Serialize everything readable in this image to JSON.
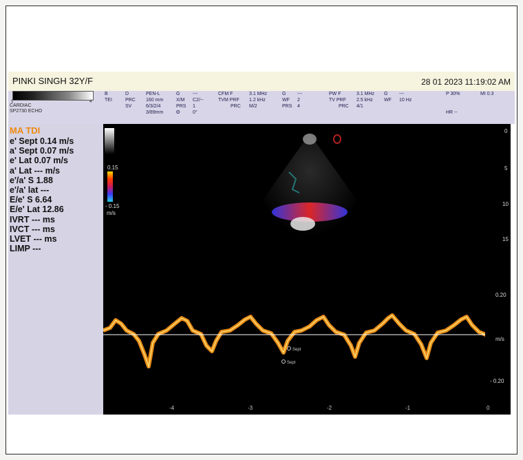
{
  "header": {
    "patient": "PINKI SINGH  32Y/F",
    "datetime": "28  01  2023 11:19:02 AM"
  },
  "param": {
    "graybar_left": "1",
    "graybar_right": "4",
    "cardiac": "CARDIAC",
    "probe": "SP2730   ECHO",
    "col1": [
      "B",
      "TEI"
    ],
    "col2": [
      "",
      "D",
      "PRC",
      "SV"
    ],
    "col3": [
      "PEN-L",
      "160 mm",
      "6/3/2/4",
      "3/89mm"
    ],
    "col4": [
      "G",
      "X/M",
      "PRS",
      "Θ"
    ],
    "col5": [
      "---",
      "C2/--",
      "1",
      "0°"
    ],
    "col6": [
      "CFM F",
      "TVM PRF",
      "PRC"
    ],
    "col7": [
      "3.1 MHz",
      "1.2 kHz",
      "M/2"
    ],
    "col8": [
      "G",
      "WF",
      "PRS"
    ],
    "col9": [
      "---",
      "2",
      "4"
    ],
    "col10": [
      "PW F",
      "TV  PRF",
      "PRC"
    ],
    "col11": [
      "3.1 MHz",
      "2.5 kHz",
      "4/1"
    ],
    "col12": [
      "G",
      "WF"
    ],
    "col13": [
      "---",
      "10 Hz"
    ],
    "col14": [
      "P  30%",
      "",
      "",
      "HR --"
    ],
    "col15": [
      "MI  0.3"
    ]
  },
  "measurements": {
    "title": "MA TDI",
    "rows": [
      "e' Sept 0.14 m/s",
      "a' Sept 0.07 m/s",
      "e' Lat 0.07 m/s",
      "a' Lat --- m/s",
      "e'/a' S 1.88",
      "e'/a' lat ---",
      "E/e' S 6.64",
      "E/e' Lat 12.86",
      "IVRT --- ms",
      "IVCT --- ms",
      "LVET --- ms",
      "LIMP ---"
    ]
  },
  "colorscale": {
    "top": "0.15",
    "bottom": "- 0.15",
    "unit": "m/s"
  },
  "depth_scale": [
    "0",
    "5",
    "10",
    "15"
  ],
  "doppler_scale": {
    "top": "0.20",
    "unit": "m/s",
    "bottom": "- 0.20"
  },
  "time_axis": [
    "-4",
    "-3",
    "-2",
    "-1",
    "0"
  ],
  "markers": {
    "m1": "Sept",
    "m2": "Sept"
  },
  "colors": {
    "trace": "#ff9a1a",
    "baseline": "#ffffff",
    "accent": "#f08a10"
  }
}
